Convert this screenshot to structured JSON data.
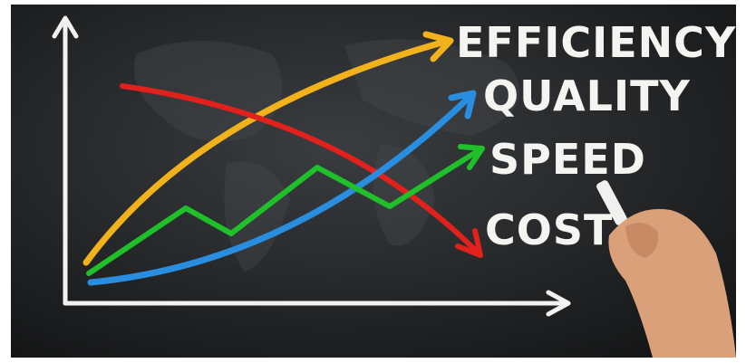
{
  "labels": [
    {
      "text": "EFFICIENCY"
    },
    {
      "text": "QUALITY"
    },
    {
      "text": "SPEED"
    },
    {
      "text": "COST"
    }
  ]
}
